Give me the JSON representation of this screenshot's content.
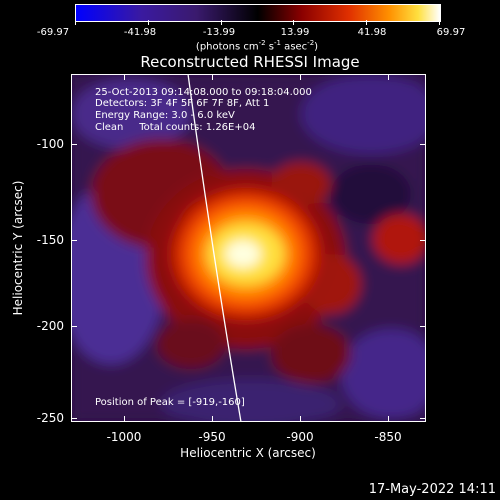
{
  "colorbar": {
    "ticks": [
      "-69.97",
      "-41.98",
      "-13.99",
      "13.99",
      "41.98",
      "69.97"
    ],
    "units_prefix": "(photons cm",
    "units_exp1": "-2",
    "units_mid1": " s",
    "units_exp2": "-1",
    "units_mid2": " asec",
    "units_exp3": "-2",
    "units_suffix": ")"
  },
  "title": "Reconstructed RHESSI Image",
  "info": {
    "time_range": "25-Oct-2013 09:14:08.000 to 09:18:04.000",
    "detectors": "Detectors: 3F 4F 5F 6F 7F 8F, Att 1",
    "energy": "Energy Range: 3.0 - 6.0 keV",
    "clean": "Clean     Total counts: 1.26E+04"
  },
  "peak": "Position of Peak = [-919,-160]",
  "axes": {
    "x_label": "Heliocentric X (arcsec)",
    "y_label": "Heliocentric Y (arcsec)",
    "x_ticks": [
      "-1000",
      "-950",
      "-900",
      "-850"
    ],
    "y_ticks": [
      "-100",
      "-150",
      "-200",
      "-250"
    ]
  },
  "timestamp": "17-May-2022 14:11",
  "colors": {
    "background": "#000000",
    "limb": "#ffffff"
  }
}
